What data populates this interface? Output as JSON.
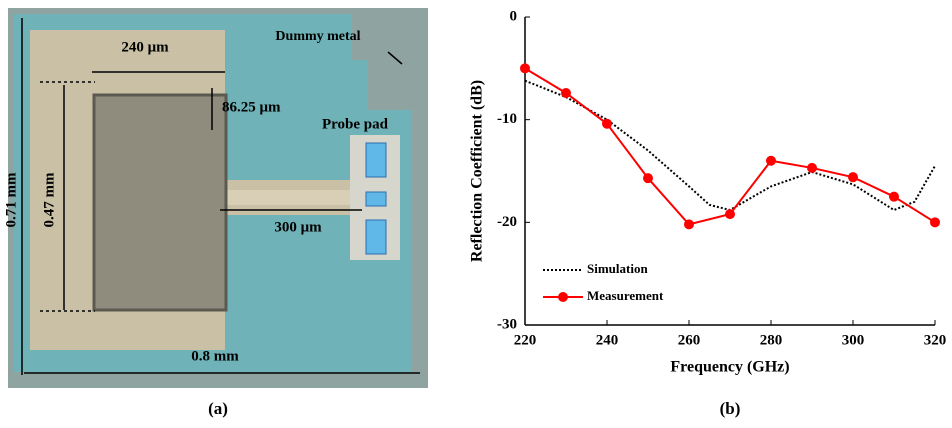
{
  "panel_a": {
    "labels": [
      "240 μm",
      "Dummy metal",
      "86.25 μm",
      "Probe pad",
      "0.71 mm",
      "0.47 mm",
      "300 μm",
      "0.8 mm"
    ],
    "caption": "(a)"
  },
  "chart_data": {
    "type": "line",
    "caption": "(b)",
    "x_label": "Frequency (GHz)",
    "y_label": "Reflection Coefficient (dB)",
    "xlim": [
      220,
      320
    ],
    "xticks": [
      220,
      240,
      260,
      280,
      300,
      320
    ],
    "ylim": [
      -30,
      0
    ],
    "yticks": [
      0,
      -10,
      -20,
      -30
    ],
    "legend": "lower left",
    "series": [
      {
        "name": "Simulation",
        "color": "#000000",
        "dash": true,
        "markers": false,
        "x": [
          220,
          230,
          240,
          250,
          260,
          265,
          270,
          280,
          290,
          300,
          310,
          315,
          320
        ],
        "values": [
          -6.2,
          -7.8,
          -10,
          -13,
          -16.5,
          -18.3,
          -18.8,
          -16.5,
          -15.1,
          -16.3,
          -18.8,
          -18,
          -14.5
        ]
      },
      {
        "name": "Measurement",
        "color": "#ff0000",
        "dash": false,
        "markers": true,
        "x": [
          220,
          230,
          240,
          250,
          260,
          270,
          280,
          290,
          300,
          310,
          320
        ],
        "values": [
          -5,
          -7.4,
          -10.4,
          -15.7,
          -20.2,
          -19.2,
          -14,
          -14.7,
          -15.6,
          -17.5,
          -20
        ]
      }
    ]
  }
}
